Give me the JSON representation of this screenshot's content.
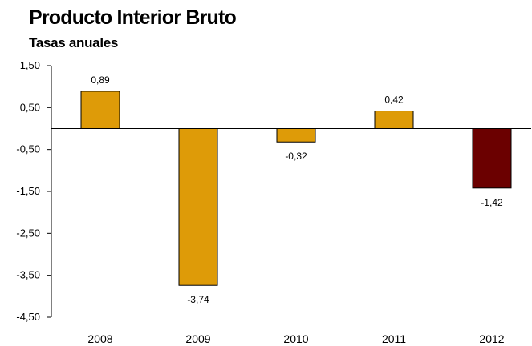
{
  "chart_data": {
    "type": "bar",
    "title": "Producto Interior Bruto",
    "subtitle": "Tasas anuales",
    "categories": [
      "2008",
      "2009",
      "2010",
      "2011",
      "2012"
    ],
    "values": [
      0.89,
      -3.74,
      -0.32,
      0.42,
      -1.42
    ],
    "data_labels": [
      "0,89",
      "-3,74",
      "-0,32",
      "0,42",
      "-1,42"
    ],
    "bar_colors": [
      "#DE9B08",
      "#DE9B08",
      "#DE9B08",
      "#DE9B08",
      "#6B0000"
    ],
    "ylim": [
      -4.5,
      1.5
    ],
    "yticks": [
      1.5,
      0.5,
      -0.5,
      -1.5,
      -2.5,
      -3.5,
      -4.5
    ],
    "ytick_labels": [
      "1,50",
      "0,50",
      "-0,50",
      "-1,50",
      "-2,50",
      "-3,50",
      "-4,50"
    ],
    "xlabel": "",
    "ylabel": "",
    "grid": false,
    "legend": "none"
  }
}
